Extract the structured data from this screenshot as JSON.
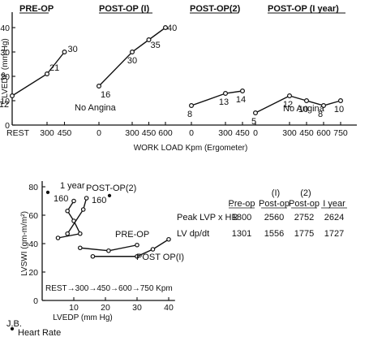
{
  "chart_data": [
    {
      "type": "line",
      "ylabel": "LVEDP (mm Hg)",
      "xlabel": "WORK LOAD Kpm (Ergometer)",
      "ylim": [
        0,
        40
      ],
      "yticks": [
        "0",
        "10",
        "20",
        "30",
        "40"
      ],
      "ytick_values": [
        0,
        10,
        20,
        30,
        40
      ],
      "annotations": [
        "No Angina",
        "No Angina"
      ],
      "panels": [
        {
          "title": "PRE-OP",
          "xtick_labels": [
            "REST",
            "300",
            "450"
          ],
          "x": [
            0,
            300,
            450
          ],
          "values": [
            12,
            21,
            30
          ],
          "point_labels": [
            "12",
            "21",
            "30"
          ]
        },
        {
          "title": "POST-OP (I)",
          "xtick_labels": [
            "0",
            "300",
            "450",
            "600"
          ],
          "x": [
            0,
            300,
            450,
            600
          ],
          "values": [
            16,
            30,
            35,
            40
          ],
          "point_labels": [
            "16",
            "30",
            "35",
            "40"
          ]
        },
        {
          "title": "POST-OP(2)",
          "xtick_labels": [
            "0",
            "300",
            "450"
          ],
          "x": [
            0,
            300,
            450
          ],
          "values": [
            8,
            13,
            14
          ],
          "point_labels": [
            "8",
            "13",
            "14"
          ]
        },
        {
          "title": "POST-OP (I year)",
          "xtick_labels": [
            "0",
            "300",
            "450",
            "600",
            "750"
          ],
          "x": [
            0,
            300,
            450,
            600,
            750
          ],
          "values": [
            5,
            12,
            10,
            8,
            10
          ],
          "point_labels": [
            "5",
            "12",
            "10",
            "8",
            "10"
          ]
        }
      ]
    },
    {
      "type": "line",
      "xlabel": "LVEDP (mm Hg)",
      "ylabel": "LVSWI (gm-m/m²)",
      "xlim": [
        0,
        40
      ],
      "ylim": [
        0,
        80
      ],
      "xticks": [
        "10",
        "20",
        "30",
        "40"
      ],
      "xtick_values": [
        10,
        20,
        30,
        40
      ],
      "yticks": [
        "0",
        "20",
        "40",
        "60",
        "80"
      ],
      "ytick_values": [
        0,
        20,
        40,
        60,
        80
      ],
      "legend_note": "REST→300→450→600→750 Kpm",
      "series": [
        {
          "name": "1 year",
          "x": [
            5,
            12,
            10,
            8,
            10
          ],
          "y": [
            44,
            47,
            56,
            63,
            70
          ],
          "end_label": "160",
          "hr_marker": "•"
        },
        {
          "name": "POST-OP(2)",
          "x": [
            8,
            13,
            14
          ],
          "y": [
            47,
            64,
            72
          ],
          "end_label": "160",
          "hr_marker": "•"
        },
        {
          "name": "PRE-OP",
          "x": [
            12,
            21,
            30
          ],
          "y": [
            37,
            35,
            39
          ]
        },
        {
          "name": "POST OP(I)",
          "x": [
            16,
            30,
            35,
            40
          ],
          "y": [
            31,
            31,
            36,
            43
          ]
        }
      ]
    },
    {
      "type": "table",
      "columns": [
        {
          "top": "",
          "bottom": "Pre-op"
        },
        {
          "top": "(I)",
          "bottom": "Post-op"
        },
        {
          "top": "(2)",
          "bottom": "Post-op"
        },
        {
          "top": "",
          "bottom": "I year"
        }
      ],
      "rows": [
        {
          "label": "Peak LVP x HR",
          "values": [
            "1800",
            "2560",
            "2752",
            "2624"
          ]
        },
        {
          "label": "LV dp/dt",
          "values": [
            "1301",
            "1556",
            "1775",
            "1727"
          ]
        }
      ]
    }
  ],
  "footer": {
    "initials": "J.B.",
    "hr_legend_symbol": "•",
    "hr_legend_text": "Heart Rate"
  }
}
